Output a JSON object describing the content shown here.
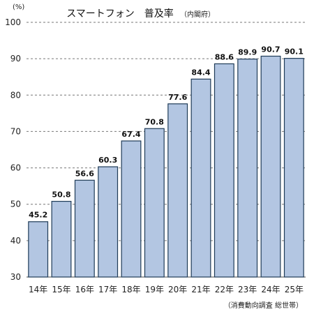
{
  "chart_data": {
    "type": "bar",
    "title": "スマートフォン　普及率",
    "subtitle": "（内閣府）",
    "ylabel": "(%)",
    "source": "（消費動向調査 総世帯）",
    "categories": [
      "14年",
      "15年",
      "16年",
      "17年",
      "18年",
      "19年",
      "20年",
      "21年",
      "22年",
      "23年",
      "24年",
      "25年"
    ],
    "values": [
      45.2,
      50.8,
      56.6,
      60.3,
      67.4,
      70.8,
      77.6,
      84.4,
      88.6,
      89.9,
      90.7,
      90.1
    ],
    "value_labels": [
      "45.2",
      "50.8",
      "56.6",
      "60.3",
      "67.4",
      "70.8",
      "77.6",
      "84.4",
      "88.6",
      "89.9",
      "90.7",
      "90.1"
    ],
    "yticks": [
      "30",
      "40",
      "50",
      "60",
      "70",
      "80",
      "90",
      "100"
    ],
    "ylim": [
      30,
      100
    ],
    "grid": "dashed horizontal",
    "bar_color": "#b3c6e2",
    "bar_edge_color": "#1f3b57"
  }
}
